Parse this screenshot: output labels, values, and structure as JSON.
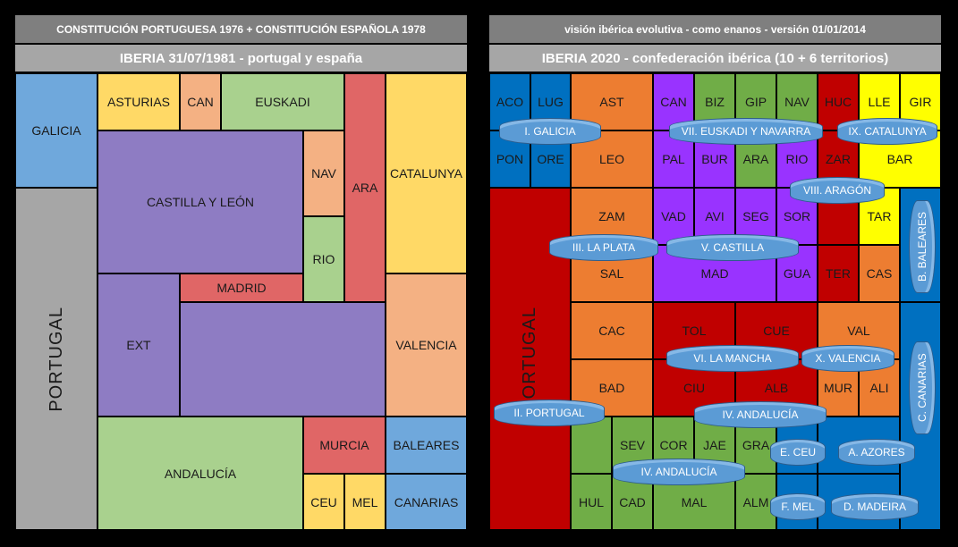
{
  "left": {
    "header": "CONSTITUCIÓN PORTUGUESA 1976 + CONSTITUCIÓN ESPAÑOLA 1978",
    "subheader": "IBERIA 31/07/1981 - portugal y españa",
    "regions": {
      "galicia": "GALICIA",
      "portugal": "PORTUGAL",
      "asturias": "ASTURIAS",
      "can": "CAN",
      "euskadi": "EUSKADI",
      "ara": "ARA",
      "catalunya": "CATALUNYA",
      "castilla_leon": "CASTILLA Y LEÓN",
      "nav": "NAV",
      "rio": "RIO",
      "madrid": "MADRID",
      "ext": "EXT",
      "valencia": "VALENCIA",
      "andalucia": "ANDALUCÍA",
      "murcia": "MURCIA",
      "baleares": "BALEARES",
      "ceu": "CEU",
      "mel": "MEL",
      "canarias": "CANARIAS"
    }
  },
  "right": {
    "header": "visión ibérica evolutiva - como enanos - versión 01/01/2014",
    "subheader": "IBERIA 2020 - confederación ibérica (10 + 6 territorios)",
    "provinces": {
      "aco": "ACO",
      "lug": "LUG",
      "ast": "AST",
      "can": "CAN",
      "biz": "BIZ",
      "gip": "GIP",
      "nav": "NAV",
      "huc": "HUC",
      "lle": "LLE",
      "gir": "GIR",
      "pon": "PON",
      "ore": "ORE",
      "leo": "LEO",
      "pal": "PAL",
      "bur": "BUR",
      "ara": "ARA",
      "rio": "RIO",
      "zar": "ZAR",
      "bar": "BAR",
      "zam": "ZAM",
      "vad": "VAD",
      "avi": "AVI",
      "seg": "SEG",
      "sor": "SOR",
      "tar": "TAR",
      "sal": "SAL",
      "mad": "MAD",
      "gua": "GUA",
      "ter": "TER",
      "cas": "CAS",
      "cac": "CAC",
      "tol": "TOL",
      "cue": "CUE",
      "val": "VAL",
      "bad": "BAD",
      "ciu": "CIU",
      "alb": "ALB",
      "mur": "MUR",
      "ali": "ALI",
      "sev": "SEV",
      "cor": "COR",
      "jae": "JAE",
      "gra": "GRA",
      "hul": "HUL",
      "cad": "CAD",
      "mal": "MAL",
      "alm": "ALM",
      "portugal": "PORTUGAL"
    },
    "territories": {
      "galicia": "I. GALICIA",
      "portugal": "II. PORTUGAL",
      "la_plata": "III. LA PLATA",
      "andalucia_a": "IV. ANDALUCÍA",
      "andalucia_b": "IV. ANDALUCÍA",
      "castilla": "V. CASTILLA",
      "la_mancha": "VI. LA MANCHA",
      "euskadi_navarra": "VII. EUSKADI Y NAVARRA",
      "aragon": "VIII. ARAGÓN",
      "catalunya": "IX. CATALUNYA",
      "valencia": "X. VALENCIA",
      "ceu": "E. CEU",
      "azores": "A. AZORES",
      "mel": "F. MEL",
      "madeira": "D. MADEIRA",
      "baleares": "B. BALEARES",
      "canarias": "C. CANARIAS"
    }
  },
  "colors": {
    "blue": "#6fa8dc",
    "grey": "#a6a6a6",
    "yellow": "#ffd966",
    "orange": "#f4b183",
    "green": "#a9d18e",
    "red": "#e06666",
    "purple": "#8e7cc3",
    "r_blue": "#0070c0",
    "r_orange": "#ed7d31",
    "r_purple": "#9933ff",
    "r_green": "#70ad47",
    "r_darkred": "#c00000",
    "r_yellow": "#ffff00",
    "r_red": "#ff0000"
  }
}
